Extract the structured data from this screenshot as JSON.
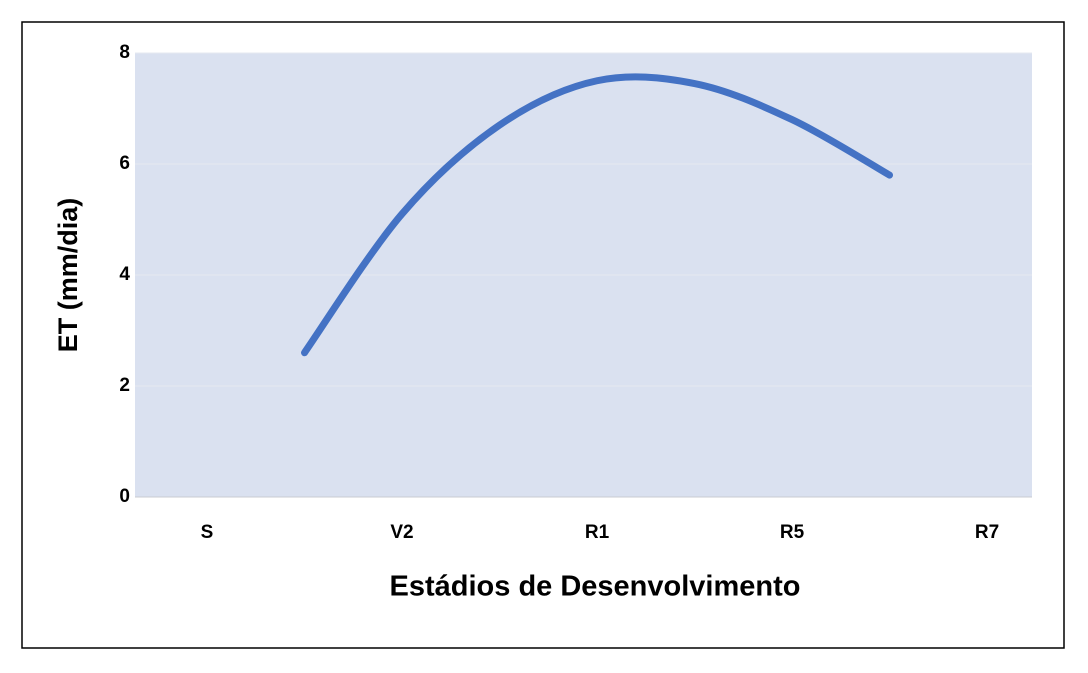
{
  "chart_data": {
    "type": "line",
    "x_label": "Estádios de Desenvolvimento",
    "y_label": "ET (mm/dia)",
    "categories": [
      "S",
      null,
      "V2",
      null,
      "R1",
      null,
      "R5",
      null,
      "R7"
    ],
    "series": [
      {
        "name": "ET",
        "color": "#4472c4",
        "values": [
          null,
          2.6,
          5.1,
          6.7,
          7.5,
          7.45,
          6.8,
          5.8,
          null
        ]
      }
    ],
    "ylim": [
      0,
      8
    ],
    "yticks": [
      0,
      2,
      4,
      6,
      8
    ],
    "grid": true,
    "smooth": true
  }
}
